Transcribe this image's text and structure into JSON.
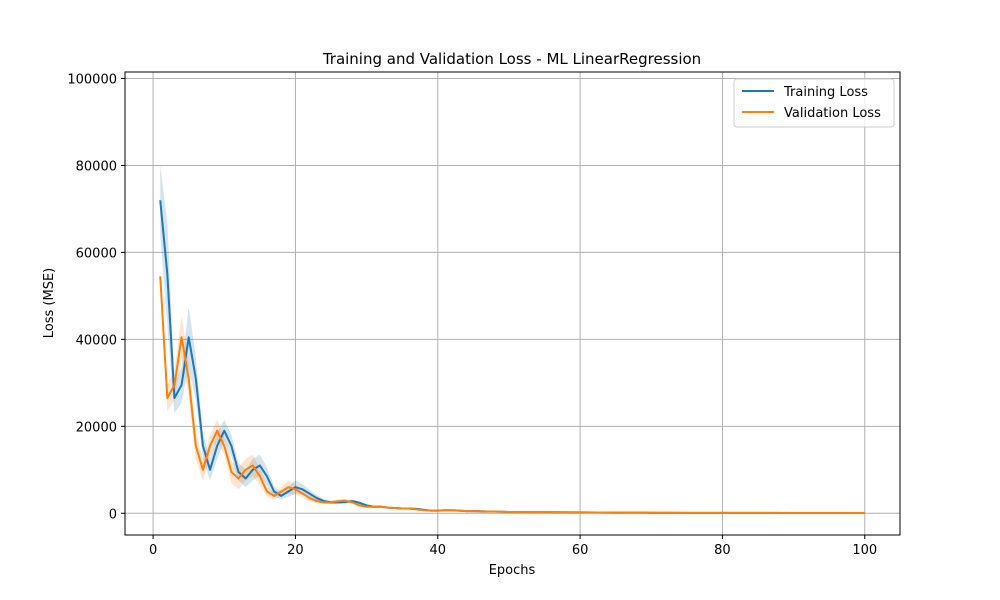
{
  "chart_data": {
    "type": "line",
    "title": "Training and Validation Loss - ML LinearRegression",
    "xlabel": "Epochs",
    "ylabel": "Loss (MSE)",
    "xlim": [
      -3.95,
      104.95
    ],
    "ylim": [
      -5000,
      101500
    ],
    "xticks": [
      0,
      20,
      40,
      60,
      80,
      100
    ],
    "yticks": [
      0,
      20000,
      40000,
      60000,
      80000,
      100000
    ],
    "grid": true,
    "legend_position": "top-right",
    "series": [
      {
        "name": "Training Loss",
        "color": "#1f77b4",
        "x": [
          1,
          2,
          3,
          4,
          5,
          6,
          7,
          8,
          9,
          10,
          11,
          12,
          13,
          14,
          15,
          16,
          17,
          18,
          19,
          20,
          21,
          22,
          23,
          24,
          25,
          26,
          27,
          28,
          29,
          30,
          31,
          32,
          33,
          34,
          35,
          36,
          37,
          38,
          39,
          40,
          41,
          42,
          43,
          44,
          45,
          46,
          47,
          48,
          49,
          50,
          55,
          60,
          65,
          70,
          75,
          80,
          85,
          90,
          95,
          100
        ],
        "values": [
          72000,
          55000,
          26500,
          29500,
          40500,
          31000,
          15500,
          10000,
          15500,
          19000,
          15500,
          9500,
          8000,
          10000,
          11000,
          8500,
          5000,
          4000,
          5000,
          6000,
          5500,
          4500,
          3500,
          2800,
          2500,
          2500,
          2600,
          2800,
          2400,
          1800,
          1500,
          1500,
          1300,
          1200,
          1100,
          1100,
          1000,
          800,
          600,
          600,
          700,
          700,
          600,
          500,
          500,
          450,
          400,
          400,
          350,
          300,
          250,
          200,
          150,
          120,
          100,
          90,
          80,
          70,
          60,
          50
        ],
        "band": [
          8000,
          12000,
          3500,
          4000,
          7000,
          5000,
          3000,
          2500,
          3000,
          2500,
          2500,
          2000,
          2000,
          2500,
          2500,
          2000,
          1200,
          800,
          1200,
          1500,
          1200,
          900,
          700,
          500,
          400,
          400,
          400,
          400,
          350,
          300,
          250,
          250,
          200,
          200,
          200,
          200,
          180,
          150,
          120,
          120,
          120,
          120,
          100,
          90,
          90,
          80,
          70,
          70,
          60,
          50,
          40,
          35,
          30,
          25,
          20,
          15,
          15,
          12,
          10,
          8
        ]
      },
      {
        "name": "Validation Loss",
        "color": "#ff7f0e",
        "x": [
          1,
          2,
          3,
          4,
          5,
          6,
          7,
          8,
          9,
          10,
          11,
          12,
          13,
          14,
          15,
          16,
          17,
          18,
          19,
          20,
          21,
          22,
          23,
          24,
          25,
          26,
          27,
          28,
          29,
          30,
          31,
          32,
          33,
          34,
          35,
          36,
          37,
          38,
          39,
          40,
          41,
          42,
          43,
          44,
          45,
          46,
          47,
          48,
          49,
          50,
          55,
          60,
          65,
          70,
          75,
          80,
          85,
          90,
          95,
          100
        ],
        "values": [
          54500,
          26500,
          29500,
          40500,
          31000,
          15500,
          10000,
          15500,
          19000,
          15500,
          9500,
          8000,
          10000,
          11000,
          8500,
          5000,
          4000,
          5000,
          6000,
          5500,
          4500,
          3500,
          2800,
          2500,
          2500,
          2800,
          2900,
          2500,
          1800,
          1500,
          1500,
          1500,
          1300,
          1200,
          1100,
          1100,
          900,
          700,
          600,
          600,
          700,
          700,
          600,
          500,
          500,
          450,
          400,
          400,
          350,
          300,
          250,
          200,
          150,
          120,
          100,
          90,
          80,
          70,
          60,
          50
        ],
        "band": [
          0,
          3000,
          3500,
          5000,
          4000,
          3000,
          2500,
          2500,
          2500,
          2000,
          2500,
          2500,
          2500,
          2500,
          2000,
          1200,
          800,
          1000,
          1500,
          1200,
          900,
          700,
          500,
          400,
          400,
          400,
          400,
          350,
          300,
          250,
          250,
          250,
          200,
          200,
          200,
          200,
          180,
          150,
          120,
          120,
          120,
          120,
          100,
          90,
          90,
          80,
          70,
          70,
          60,
          50,
          40,
          35,
          30,
          25,
          20,
          15,
          15,
          12,
          10,
          8
        ]
      }
    ]
  }
}
